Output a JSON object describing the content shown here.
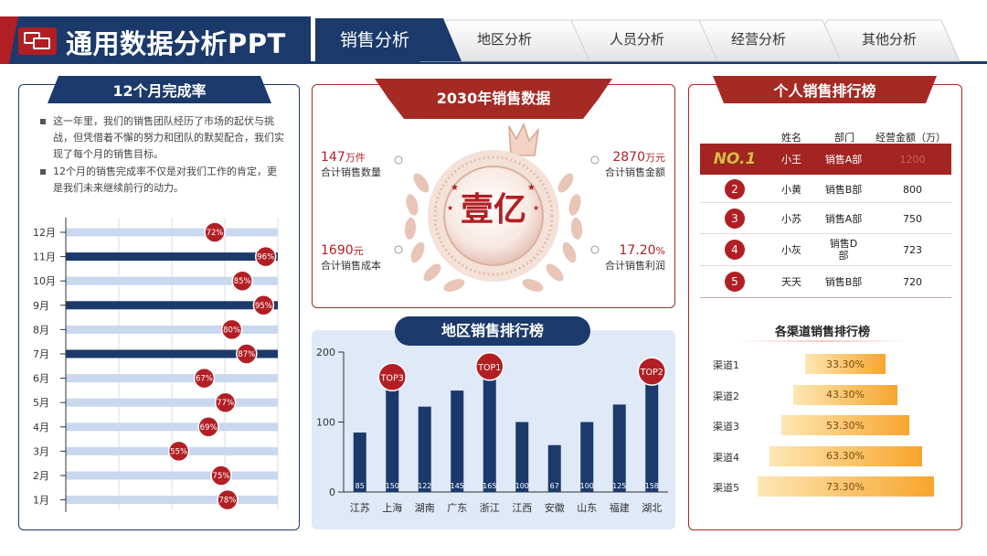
{
  "header": {
    "title": "通用数据分析PPT",
    "logo_icon": "chat-bubbles-icon",
    "tabs": [
      {
        "label": "销售分析",
        "active": true
      },
      {
        "label": "地区分析",
        "active": false
      },
      {
        "label": "人员分析",
        "active": false
      },
      {
        "label": "经营分析",
        "active": false
      },
      {
        "label": "其他分析",
        "active": false
      }
    ]
  },
  "colors": {
    "navy": "#1b3a6b",
    "red": "#b11f24",
    "light_blue": "#c9d8ef",
    "orange": "#f7a52d"
  },
  "monthly": {
    "title": "12个月完成率",
    "bullets": [
      "这一年里，我们的销售团队经历了市场的起伏与挑战，但凭借着不懈的努力和团队的默契配合，我们实现了每个月的销售目标。",
      "12个月的销售完成率不仅是对我们工作的肯定，更是我们未来继续前行的动力。"
    ]
  },
  "summary": {
    "title": "2030年销售数据",
    "center_label": "壹亿",
    "stats": [
      {
        "value": "147",
        "unit": "万件",
        "label": "合计销售数量"
      },
      {
        "value": "2870",
        "unit": "万元",
        "label": "合计销售金额"
      },
      {
        "value": "1690",
        "unit": "元",
        "label": "合计销售成本"
      },
      {
        "value": "17.20",
        "unit": "%",
        "label": "合计销售利润"
      }
    ]
  },
  "region": {
    "title": "地区销售排行榜"
  },
  "ranking": {
    "title": "个人销售排行榜",
    "columns": [
      "姓名",
      "部门",
      "经营金额（万）"
    ],
    "first_badge": "NO.1",
    "rows": [
      {
        "rank": "1",
        "name": "小王",
        "dept": "销售A部",
        "amount": "1200"
      },
      {
        "rank": "2",
        "name": "小黄",
        "dept": "销售B部",
        "amount": "800"
      },
      {
        "rank": "3",
        "name": "小苏",
        "dept": "销售A部",
        "amount": "750"
      },
      {
        "rank": "4",
        "name": "小灰",
        "dept": "销售D部",
        "amount": "723"
      },
      {
        "rank": "5",
        "name": "天天",
        "dept": "销售B部",
        "amount": "720"
      }
    ]
  },
  "channels": {
    "title": "各渠道销售排行榜",
    "items": [
      {
        "label": "渠道1",
        "value": "33.30%",
        "pct": 33.3
      },
      {
        "label": "渠道2",
        "value": "43.30%",
        "pct": 43.3
      },
      {
        "label": "渠道3",
        "value": "53.30%",
        "pct": 53.3
      },
      {
        "label": "渠道4",
        "value": "63.30%",
        "pct": 63.3
      },
      {
        "label": "渠道5",
        "value": "73.30%",
        "pct": 73.3
      }
    ]
  },
  "chart_data": [
    {
      "type": "bar",
      "orientation": "horizontal",
      "title": "12个月完成率",
      "categories": [
        "12月",
        "11月",
        "10月",
        "9月",
        "8月",
        "7月",
        "6月",
        "5月",
        "4月",
        "3月",
        "2月",
        "1月"
      ],
      "values": [
        72,
        96,
        85,
        95,
        80,
        87,
        67,
        77,
        69,
        55,
        75,
        78
      ],
      "labels": [
        "72%",
        "96%",
        "85%",
        "95%",
        "80%",
        "87%",
        "67%",
        "77%",
        "69%",
        "55%",
        "75%",
        "78%"
      ],
      "highlighted": [
        "11月",
        "9月",
        "7月"
      ],
      "xlim": [
        0,
        100
      ]
    },
    {
      "type": "bar",
      "title": "地区销售排行榜",
      "categories": [
        "江苏",
        "上海",
        "湖南",
        "广东",
        "浙江",
        "江西",
        "安徽",
        "山东",
        "福建",
        "湖北"
      ],
      "values": [
        85,
        150,
        122,
        145,
        165,
        100,
        67,
        100,
        125,
        158
      ],
      "ylim": [
        0,
        200
      ],
      "yticks": [
        0,
        100,
        200
      ],
      "annotations": [
        {
          "category": "浙江",
          "text": "TOP1"
        },
        {
          "category": "湖北",
          "text": "TOP2"
        },
        {
          "category": "上海",
          "text": "TOP3"
        }
      ]
    }
  ]
}
